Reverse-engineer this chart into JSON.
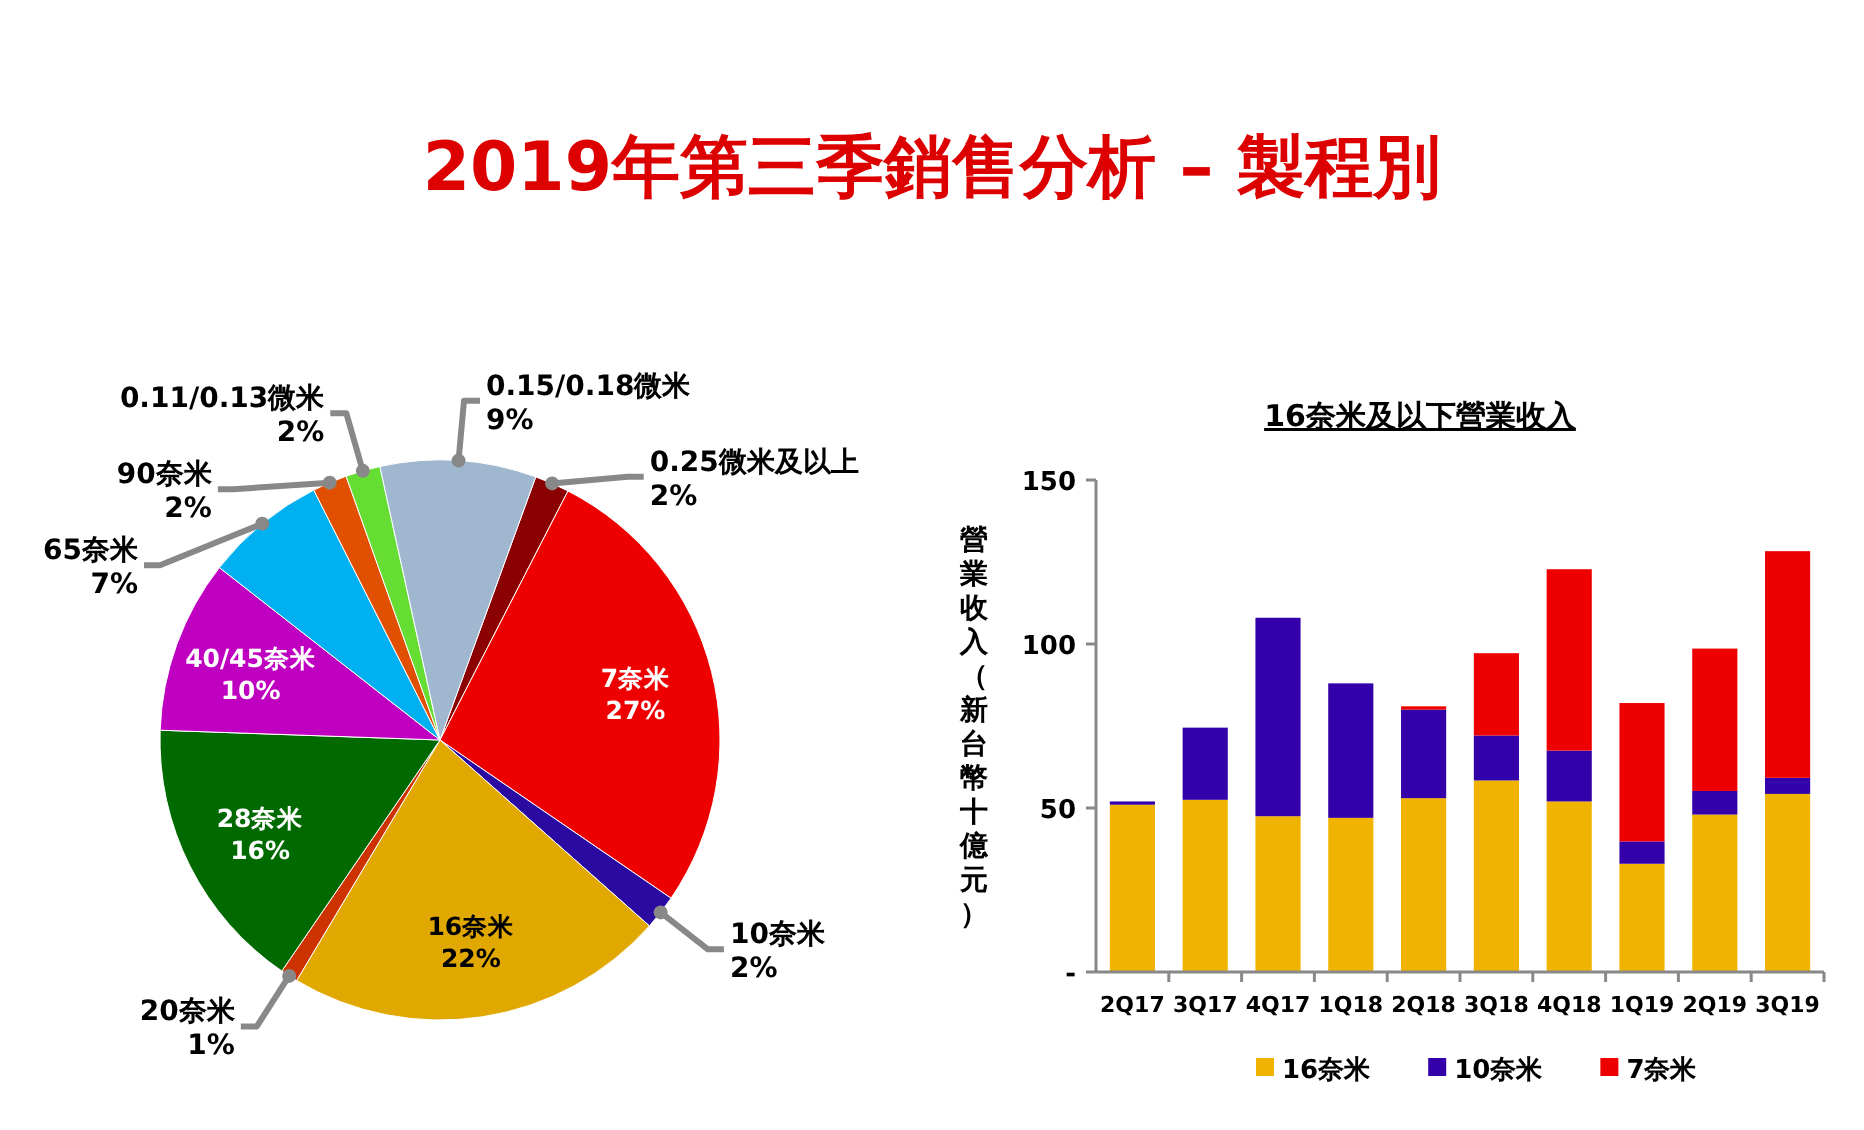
{
  "chart_data": [
    {
      "type": "pie",
      "title": "2019年第三季銷售分析 – 製程別",
      "categories": [
        "0.25微米及以上",
        "7奈米",
        "10奈米",
        "16奈米",
        "20奈米",
        "28奈米",
        "40/45奈米",
        "65奈米",
        "90奈米",
        "0.11/0.13微米",
        "0.15/0.18微米"
      ],
      "values": [
        2,
        27,
        2,
        22,
        1,
        16,
        10,
        7,
        2,
        2,
        9
      ],
      "colors": [
        "#8b0000",
        "#ee0000",
        "#2a0aa0",
        "#e0a800",
        "#cc3300",
        "#006a00",
        "#c000c0",
        "#00b0f0",
        "#e05000",
        "#66dd33",
        "#9fb8d0"
      ],
      "value_labels": [
        "2%",
        "27%",
        "2%",
        "22%",
        "1%",
        "16%",
        "10%",
        "7%",
        "2%",
        "2%",
        "9%"
      ]
    },
    {
      "type": "bar",
      "title": "16奈米及以下營業收入",
      "ylabel": "營業收入（新台幣十億元）",
      "categories": [
        "2Q17",
        "3Q17",
        "4Q17",
        "1Q18",
        "2Q18",
        "3Q18",
        "4Q18",
        "1Q19",
        "2Q19",
        "3Q19"
      ],
      "series": [
        {
          "name": "16奈米",
          "color": "#f0b400",
          "values": [
            51,
            52.5,
            47.5,
            47,
            53,
            58.4,
            52,
            33,
            48,
            54.3
          ]
        },
        {
          "name": "10奈米",
          "color": "#3300aa",
          "values": [
            1,
            22,
            60.5,
            41,
            27,
            13.7,
            15.5,
            6.8,
            7.2,
            4.9
          ]
        },
        {
          "name": "7奈米",
          "color": "#ee0000",
          "values": [
            0,
            0,
            0,
            0,
            1,
            25.1,
            55.3,
            42.2,
            43.4,
            69.1
          ]
        }
      ],
      "stacked": true,
      "ylim": [
        0,
        150
      ],
      "yticks": [
        {
          "value": 0,
          "label": "-"
        },
        50,
        100,
        150
      ],
      "legend": "bottom"
    }
  ]
}
